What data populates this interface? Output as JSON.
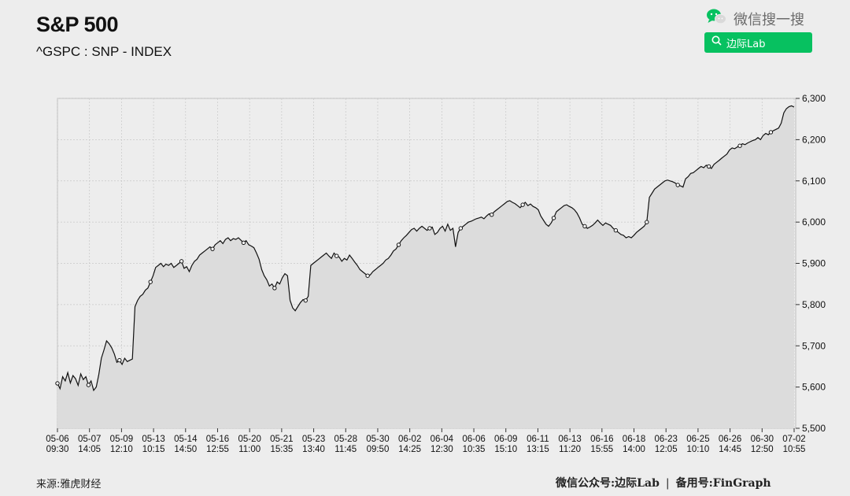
{
  "header": {
    "title": "S&P 500",
    "subtitle": "^GSPC : SNP - INDEX"
  },
  "wechat": {
    "icon": "wechat-icon",
    "label": "微信搜一搜",
    "search_icon": "search-icon",
    "search_text": "边际Lab",
    "brand_color": "#07c160"
  },
  "footer": {
    "source": "来源:雅虎财经",
    "account_prefix": "微信公众号:",
    "account_name": "边际Lab",
    "separator": "|",
    "backup_prefix": "备用号:",
    "backup_name": "FinGraph"
  },
  "chart_data": {
    "type": "area",
    "title": "S&P 500",
    "subtitle": "^GSPC : SNP - INDEX",
    "ylim": [
      5500,
      6300
    ],
    "y_ticks": [
      "5,500",
      "5,600",
      "5,700",
      "5,800",
      "5,900",
      "6,000",
      "6,100",
      "6,200",
      "6,300"
    ],
    "x_ticks": [
      [
        "05-06",
        "09:30"
      ],
      [
        "05-07",
        "14:05"
      ],
      [
        "05-09",
        "12:10"
      ],
      [
        "05-13",
        "10:15"
      ],
      [
        "05-14",
        "14:50"
      ],
      [
        "05-16",
        "12:55"
      ],
      [
        "05-20",
        "11:00"
      ],
      [
        "05-21",
        "15:35"
      ],
      [
        "05-23",
        "13:40"
      ],
      [
        "05-28",
        "11:45"
      ],
      [
        "05-30",
        "09:50"
      ],
      [
        "06-02",
        "14:25"
      ],
      [
        "06-04",
        "12:30"
      ],
      [
        "06-06",
        "10:35"
      ],
      [
        "06-09",
        "15:10"
      ],
      [
        "06-11",
        "13:15"
      ],
      [
        "06-13",
        "11:20"
      ],
      [
        "06-16",
        "15:55"
      ],
      [
        "06-18",
        "14:00"
      ],
      [
        "06-23",
        "12:05"
      ],
      [
        "06-25",
        "10:10"
      ],
      [
        "06-26",
        "14:45"
      ],
      [
        "06-30",
        "12:50"
      ],
      [
        "07-02",
        "10:55"
      ]
    ],
    "series": [
      {
        "values": [
          5609,
          5596,
          5625,
          5615,
          5635,
          5610,
          5628,
          5620,
          5604,
          5632,
          5618,
          5625,
          5605,
          5615,
          5592,
          5600,
          5630,
          5670,
          5690,
          5712,
          5705,
          5695,
          5680,
          5660,
          5665,
          5655,
          5670,
          5662,
          5665,
          5668,
          5795,
          5810,
          5820,
          5825,
          5835,
          5840,
          5855,
          5870,
          5890,
          5895,
          5900,
          5892,
          5898,
          5895,
          5900,
          5890,
          5895,
          5900,
          5905,
          5888,
          5892,
          5880,
          5895,
          5905,
          5910,
          5920,
          5925,
          5930,
          5935,
          5940,
          5935,
          5945,
          5950,
          5955,
          5948,
          5958,
          5962,
          5955,
          5960,
          5958,
          5962,
          5956,
          5950,
          5955,
          5945,
          5942,
          5938,
          5925,
          5910,
          5885,
          5870,
          5860,
          5845,
          5850,
          5840,
          5855,
          5850,
          5865,
          5875,
          5870,
          5810,
          5792,
          5785,
          5795,
          5805,
          5812,
          5810,
          5820,
          5895,
          5900,
          5905,
          5910,
          5915,
          5920,
          5925,
          5918,
          5912,
          5925,
          5918,
          5915,
          5905,
          5912,
          5908,
          5920,
          5912,
          5903,
          5895,
          5885,
          5880,
          5875,
          5870,
          5872,
          5880,
          5885,
          5890,
          5895,
          5900,
          5908,
          5912,
          5920,
          5930,
          5935,
          5945,
          5955,
          5962,
          5968,
          5975,
          5982,
          5985,
          5978,
          5985,
          5990,
          5985,
          5980,
          5985,
          5988,
          5970,
          5975,
          5985,
          5990,
          5978,
          5995,
          5980,
          5985,
          5940,
          5975,
          5985,
          5990,
          5995,
          6000,
          6002,
          6005,
          6008,
          6010,
          6012,
          6008,
          6015,
          6020,
          6018,
          6025,
          6030,
          6035,
          6040,
          6045,
          6050,
          6052,
          6048,
          6045,
          6040,
          6035,
          6042,
          6048,
          6040,
          6044,
          6038,
          6035,
          6030,
          6015,
          6005,
          5995,
          5990,
          5998,
          6010,
          6025,
          6030,
          6035,
          6040,
          6042,
          6038,
          6035,
          6030,
          6022,
          6010,
          5995,
          5990,
          5985,
          5988,
          5992,
          5998,
          6005,
          5998,
          5992,
          5998,
          5995,
          5992,
          5985,
          5980,
          5975,
          5970,
          5968,
          5962,
          5965,
          5962,
          5968,
          5975,
          5980,
          5985,
          5990,
          6000,
          6060,
          6070,
          6080,
          6085,
          6090,
          6095,
          6100,
          6102,
          6100,
          6098,
          6095,
          6090,
          6088,
          6085,
          6105,
          6110,
          6118,
          6120,
          6125,
          6130,
          6135,
          6132,
          6138,
          6135,
          6130,
          6140,
          6145,
          6150,
          6155,
          6160,
          6165,
          6175,
          6180,
          6178,
          6182,
          6185,
          6190,
          6188,
          6192,
          6195,
          6198,
          6200,
          6205,
          6200,
          6210,
          6215,
          6212,
          6218,
          6222,
          6225,
          6228,
          6240,
          6265,
          6275,
          6280,
          6282,
          6279
        ]
      }
    ]
  }
}
